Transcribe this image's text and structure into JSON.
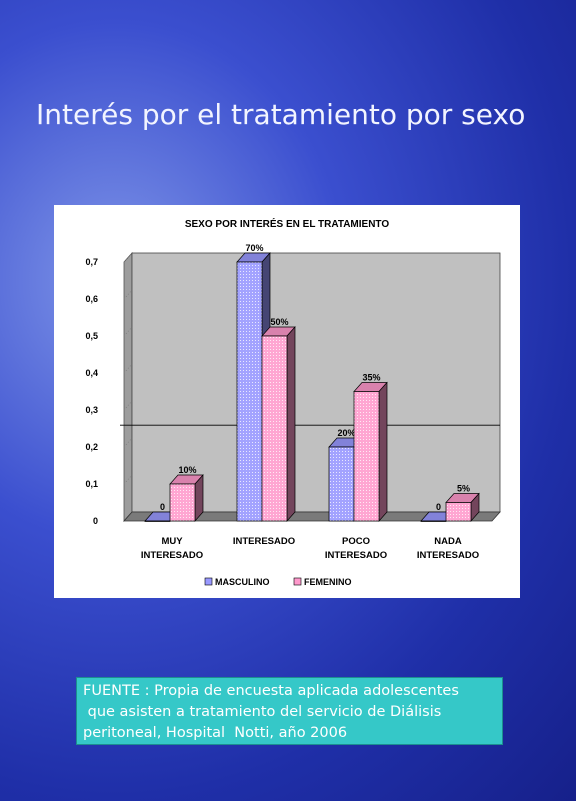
{
  "slide_title": "Interés por el tratamiento por sexo",
  "chart_data": {
    "type": "bar",
    "title": "SEXO POR INTERÉS EN EL TRATAMIENTO",
    "categories": [
      [
        "MUY",
        "INTERESADO"
      ],
      [
        "INTERESADO"
      ],
      [
        "POCO",
        "INTERESADO"
      ],
      [
        "NADA",
        "INTERESADO"
      ]
    ],
    "series": [
      {
        "name": "MASCULINO",
        "values": [
          0,
          0.7,
          0.2,
          0
        ],
        "labels": [
          "0",
          "70%",
          "20%",
          "0"
        ],
        "color": "#9999ff"
      },
      {
        "name": "FEMENINO",
        "values": [
          0.1,
          0.5,
          0.35,
          0.05
        ],
        "labels": [
          "10%",
          "50%",
          "35%",
          "5%"
        ],
        "color": "#ff99cc"
      }
    ],
    "yticks": [
      "0",
      "0,1",
      "0,2",
      "0,3",
      "0,4",
      "0,5",
      "0,6",
      "0,7"
    ],
    "ylim": [
      0,
      0.7
    ],
    "reference_line": 0.24,
    "wall_color": "#c0c0c0",
    "legend_position": "bottom"
  },
  "source": {
    "lines": [
      "FUENTE : Propia de encuesta aplicada adolescentes",
      " que asisten a tratamiento del servicio de Diálisis",
      "peritoneal, Hospital  Notti, año 2006"
    ]
  }
}
